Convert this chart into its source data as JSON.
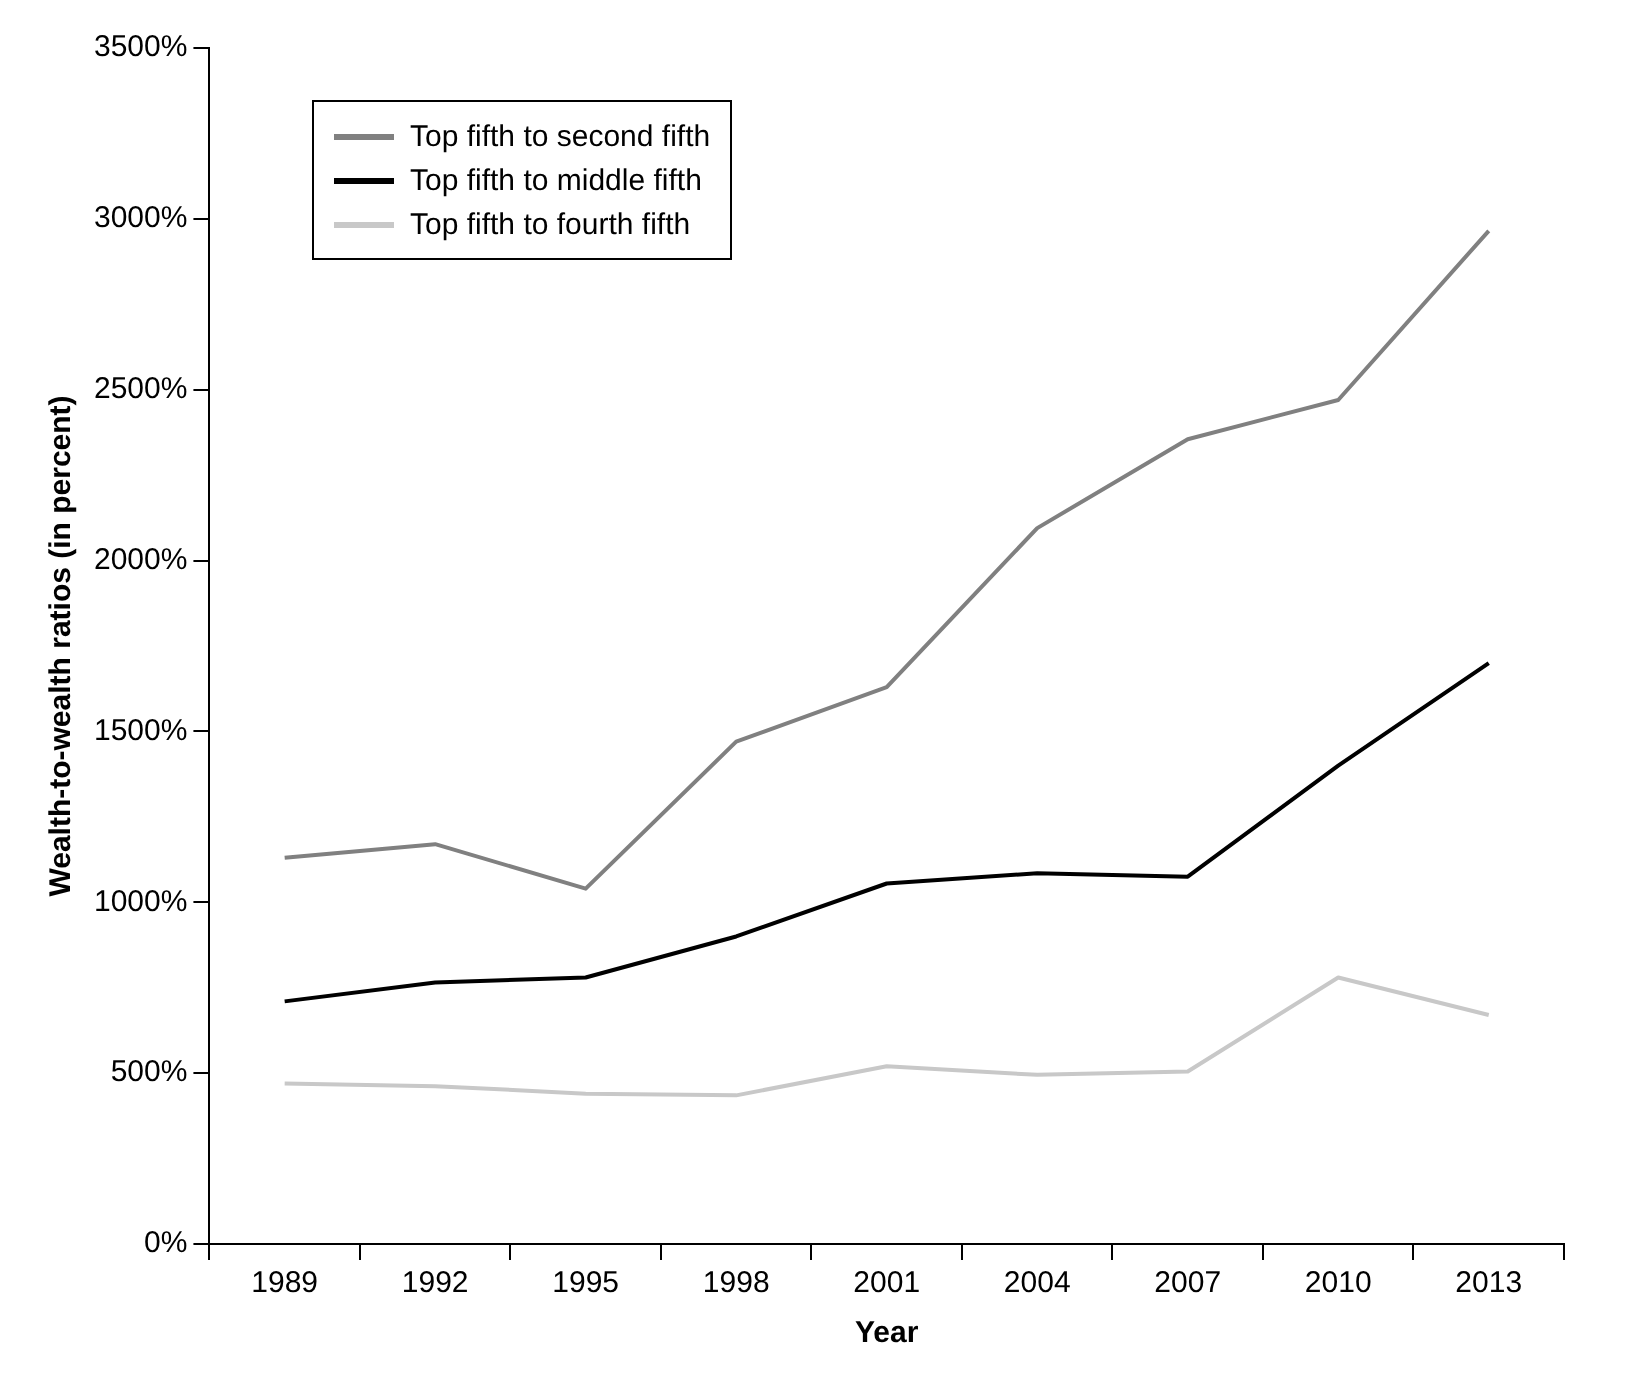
{
  "chart_data": {
    "type": "line",
    "xlabel": "Year",
    "ylabel": "Wealth-to-wealth ratios (in percent)",
    "categories": [
      "1989",
      "1992",
      "1995",
      "1998",
      "2001",
      "2004",
      "2007",
      "2010",
      "2013"
    ],
    "series": [
      {
        "name": "Top fifth to second fifth",
        "color": "#808080",
        "values": [
          1130,
          1170,
          1040,
          1470,
          1630,
          2095,
          2355,
          2470,
          2965
        ]
      },
      {
        "name": "Top fifth to middle fifth",
        "color": "#000000",
        "values": [
          710,
          765,
          780,
          900,
          1055,
          1085,
          1075,
          1400,
          1700
        ]
      },
      {
        "name": "Top fifth to fourth fifth",
        "color": "#c8c8c8",
        "values": [
          470,
          462,
          440,
          435,
          520,
          495,
          505,
          780,
          670
        ]
      }
    ],
    "ylim": [
      0,
      3500
    ],
    "yticks": [
      {
        "value": 0,
        "label": "0%"
      },
      {
        "value": 500,
        "label": "500%"
      },
      {
        "value": 1000,
        "label": "1000%"
      },
      {
        "value": 1500,
        "label": "1500%"
      },
      {
        "value": 2000,
        "label": "2000%"
      },
      {
        "value": 2500,
        "label": "2500%"
      },
      {
        "value": 3000,
        "label": "3000%"
      },
      {
        "value": 3500,
        "label": "3500%"
      }
    ],
    "grid": false,
    "legend": "top left",
    "marker": "none",
    "line_style": "solid"
  }
}
